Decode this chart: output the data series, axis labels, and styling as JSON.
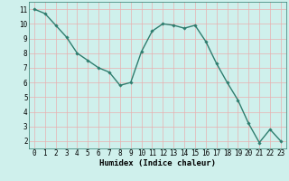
{
  "x": [
    0,
    1,
    2,
    3,
    4,
    5,
    6,
    7,
    8,
    9,
    10,
    11,
    12,
    13,
    14,
    15,
    16,
    17,
    18,
    19,
    20,
    21,
    22,
    23
  ],
  "y": [
    11.0,
    10.7,
    9.9,
    9.1,
    8.0,
    7.5,
    7.0,
    6.7,
    5.8,
    6.0,
    8.1,
    9.5,
    10.0,
    9.9,
    9.7,
    9.9,
    8.8,
    7.3,
    6.0,
    4.8,
    3.2,
    1.9,
    2.8,
    2.0
  ],
  "line_color": "#2e7d6e",
  "marker": "D",
  "marker_size": 1.8,
  "axis_bg": "#cff0ec",
  "fig_bg": "#cff0ec",
  "grid_color": "#e8b0b0",
  "xlabel": "Humidex (Indice chaleur)",
  "ylabel_ticks": [
    2,
    3,
    4,
    5,
    6,
    7,
    8,
    9,
    10,
    11
  ],
  "xlabel_ticks": [
    0,
    1,
    2,
    3,
    4,
    5,
    6,
    7,
    8,
    9,
    10,
    11,
    12,
    13,
    14,
    15,
    16,
    17,
    18,
    19,
    20,
    21,
    22,
    23
  ],
  "ylim": [
    1.5,
    11.5
  ],
  "xlim": [
    -0.5,
    23.5
  ],
  "xlabel_fontsize": 6.5,
  "tick_fontsize": 5.5,
  "linewidth": 1.0
}
